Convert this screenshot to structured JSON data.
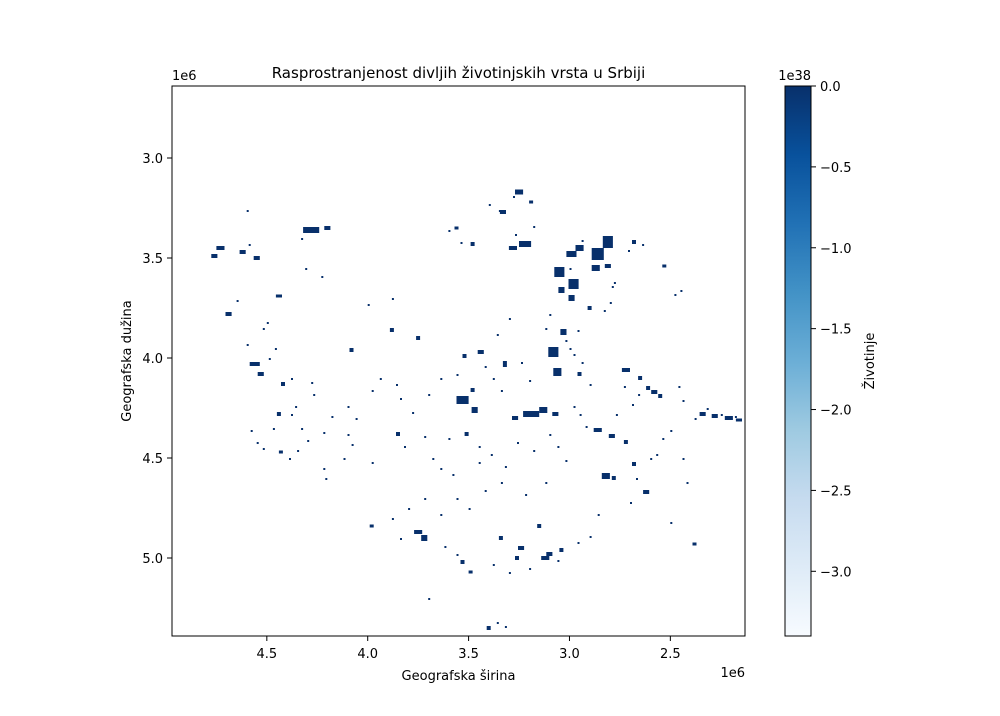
{
  "chart_data": {
    "type": "heatmap",
    "title": "Rasprostranjenost divljih životinjskih vrsta u Srbiji",
    "xlabel": "Geografska širina",
    "ylabel": "Geografska dužina",
    "x_offset_text": "1e6",
    "y_offset_text": "1e6",
    "xlim": [
      4.97,
      2.13
    ],
    "ylim": [
      5.39,
      2.64
    ],
    "x_ticks": [
      4.5,
      4.0,
      3.5,
      3.0,
      2.5
    ],
    "x_tick_labels": [
      "4.5",
      "4.0",
      "3.5",
      "3.0",
      "2.5"
    ],
    "y_ticks": [
      3.0,
      3.5,
      4.0,
      4.5,
      5.0
    ],
    "y_tick_labels": [
      "3.0",
      "3.5",
      "4.0",
      "4.5",
      "5.0"
    ],
    "colorbar": {
      "label": "Životinje",
      "offset_text": "1e38",
      "range": [
        -3.4,
        0.0
      ],
      "ticks": [
        0.0,
        -0.5,
        -1.0,
        -1.5,
        -2.0,
        -2.5,
        -3.0
      ],
      "tick_labels": [
        "0.0",
        "−0.5",
        "−1.0",
        "−1.5",
        "−2.0",
        "−2.5",
        "−3.0"
      ],
      "colormap": "Blues",
      "colors": [
        "#f7fbff",
        "#deebf7",
        "#c6dbef",
        "#9ecae1",
        "#6baed6",
        "#4292c6",
        "#2171b5",
        "#08519c",
        "#08306b"
      ]
    },
    "patch_value": 0.0,
    "patch_color": "#08306b",
    "patches": [
      [
        3.25,
        3.17,
        0.04,
        0.025
      ],
      [
        3.33,
        3.27,
        0.03,
        0.02
      ],
      [
        3.19,
        3.22,
        0.02,
        0.015
      ],
      [
        4.28,
        3.36,
        0.08,
        0.03
      ],
      [
        4.2,
        3.35,
        0.03,
        0.02
      ],
      [
        4.73,
        3.45,
        0.04,
        0.02
      ],
      [
        4.76,
        3.49,
        0.03,
        0.02
      ],
      [
        4.62,
        3.47,
        0.03,
        0.02
      ],
      [
        4.55,
        3.5,
        0.03,
        0.02
      ],
      [
        4.69,
        3.78,
        0.03,
        0.02
      ],
      [
        4.44,
        3.69,
        0.03,
        0.015
      ],
      [
        3.48,
        3.43,
        0.02,
        0.02
      ],
      [
        3.22,
        3.43,
        0.06,
        0.03
      ],
      [
        3.28,
        3.45,
        0.04,
        0.02
      ],
      [
        2.99,
        3.48,
        0.05,
        0.03
      ],
      [
        2.95,
        3.45,
        0.04,
        0.03
      ],
      [
        2.86,
        3.48,
        0.06,
        0.06
      ],
      [
        2.81,
        3.42,
        0.05,
        0.06
      ],
      [
        2.87,
        3.55,
        0.04,
        0.03
      ],
      [
        3.05,
        3.57,
        0.05,
        0.05
      ],
      [
        2.98,
        3.63,
        0.05,
        0.05
      ],
      [
        3.04,
        3.66,
        0.03,
        0.03
      ],
      [
        2.99,
        3.7,
        0.03,
        0.03
      ],
      [
        2.9,
        3.75,
        0.02,
        0.02
      ],
      [
        2.81,
        3.54,
        0.03,
        0.02
      ],
      [
        2.68,
        3.42,
        0.02,
        0.02
      ],
      [
        2.53,
        3.54,
        0.02,
        0.015
      ],
      [
        3.75,
        3.9,
        0.02,
        0.02
      ],
      [
        4.08,
        3.96,
        0.02,
        0.02
      ],
      [
        3.88,
        3.86,
        0.02,
        0.02
      ],
      [
        3.52,
        3.99,
        0.02,
        0.02
      ],
      [
        3.44,
        3.97,
        0.03,
        0.02
      ],
      [
        3.32,
        4.03,
        0.02,
        0.03
      ],
      [
        3.08,
        3.97,
        0.05,
        0.05
      ],
      [
        3.06,
        4.07,
        0.04,
        0.04
      ],
      [
        3.03,
        3.87,
        0.03,
        0.03
      ],
      [
        2.95,
        4.08,
        0.02,
        0.02
      ],
      [
        4.56,
        4.03,
        0.05,
        0.02
      ],
      [
        4.53,
        4.08,
        0.03,
        0.02
      ],
      [
        3.53,
        4.21,
        0.06,
        0.04
      ],
      [
        3.47,
        4.26,
        0.03,
        0.03
      ],
      [
        3.48,
        4.16,
        0.02,
        0.02
      ],
      [
        3.19,
        4.28,
        0.08,
        0.03
      ],
      [
        3.13,
        4.26,
        0.04,
        0.03
      ],
      [
        3.07,
        4.28,
        0.03,
        0.02
      ],
      [
        3.27,
        4.3,
        0.03,
        0.02
      ],
      [
        3.51,
        4.38,
        0.02,
        0.02
      ],
      [
        3.85,
        4.38,
        0.02,
        0.02
      ],
      [
        2.72,
        4.06,
        0.04,
        0.02
      ],
      [
        2.65,
        4.1,
        0.02,
        0.02
      ],
      [
        2.61,
        4.15,
        0.02,
        0.02
      ],
      [
        2.58,
        4.17,
        0.03,
        0.02
      ],
      [
        2.55,
        4.19,
        0.02,
        0.02
      ],
      [
        2.34,
        4.28,
        0.03,
        0.02
      ],
      [
        2.28,
        4.29,
        0.03,
        0.02
      ],
      [
        2.21,
        4.3,
        0.04,
        0.02
      ],
      [
        2.16,
        4.31,
        0.03,
        0.015
      ],
      [
        2.86,
        4.36,
        0.04,
        0.02
      ],
      [
        2.79,
        4.39,
        0.03,
        0.02
      ],
      [
        2.72,
        4.42,
        0.02,
        0.02
      ],
      [
        2.82,
        4.59,
        0.04,
        0.03
      ],
      [
        2.78,
        4.6,
        0.02,
        0.02
      ],
      [
        2.68,
        4.53,
        0.02,
        0.02
      ],
      [
        2.62,
        4.67,
        0.03,
        0.02
      ],
      [
        3.75,
        4.87,
        0.04,
        0.02
      ],
      [
        3.72,
        4.9,
        0.03,
        0.03
      ],
      [
        3.53,
        5.02,
        0.02,
        0.02
      ],
      [
        3.49,
        5.07,
        0.02,
        0.015
      ],
      [
        3.24,
        4.95,
        0.03,
        0.02
      ],
      [
        3.26,
        5.0,
        0.02,
        0.02
      ],
      [
        3.12,
        5.0,
        0.04,
        0.02
      ],
      [
        3.1,
        4.98,
        0.03,
        0.02
      ],
      [
        3.04,
        4.96,
        0.02,
        0.02
      ],
      [
        3.34,
        4.9,
        0.02,
        0.02
      ],
      [
        3.15,
        4.84,
        0.02,
        0.02
      ],
      [
        2.38,
        4.93,
        0.02,
        0.015
      ],
      [
        4.44,
        4.28,
        0.02,
        0.02
      ],
      [
        4.42,
        4.13,
        0.02,
        0.02
      ],
      [
        3.98,
        4.84,
        0.02,
        0.015
      ],
      [
        4.43,
        4.47,
        0.02,
        0.015
      ],
      [
        3.4,
        5.35,
        0.02,
        0.02
      ],
      [
        3.56,
        3.35,
        0.02,
        0.015
      ]
    ],
    "speckles": [
      [
        3.6,
        3.36
      ],
      [
        3.4,
        3.23
      ],
      [
        3.28,
        3.19
      ],
      [
        3.35,
        3.26
      ],
      [
        3.18,
        3.34
      ],
      [
        2.94,
        3.41
      ],
      [
        2.71,
        3.46
      ],
      [
        2.64,
        3.43
      ],
      [
        2.45,
        3.66
      ],
      [
        2.48,
        3.68
      ],
      [
        2.78,
        3.62
      ],
      [
        2.79,
        3.64
      ],
      [
        2.8,
        3.72
      ],
      [
        2.83,
        3.76
      ],
      [
        3.1,
        3.78
      ],
      [
        3.12,
        3.85
      ],
      [
        3.02,
        3.91
      ],
      [
        2.98,
        3.98
      ],
      [
        2.94,
        4.02
      ],
      [
        2.9,
        4.13
      ],
      [
        3.2,
        4.11
      ],
      [
        3.24,
        4.02
      ],
      [
        3.3,
        3.8
      ],
      [
        3.36,
        3.88
      ],
      [
        3.88,
        3.7
      ],
      [
        4.0,
        3.73
      ],
      [
        4.23,
        3.59
      ],
      [
        4.59,
        3.43
      ],
      [
        4.65,
        3.71
      ],
      [
        4.5,
        3.82
      ],
      [
        4.52,
        3.85
      ],
      [
        4.6,
        3.93
      ],
      [
        4.46,
        3.95
      ],
      [
        4.49,
        4.0
      ],
      [
        4.38,
        4.1
      ],
      [
        4.28,
        4.12
      ],
      [
        4.27,
        4.18
      ],
      [
        4.36,
        4.24
      ],
      [
        4.58,
        4.36
      ],
      [
        4.55,
        4.42
      ],
      [
        4.52,
        4.45
      ],
      [
        4.47,
        4.35
      ],
      [
        4.39,
        4.5
      ],
      [
        4.35,
        4.46
      ],
      [
        4.22,
        4.55
      ],
      [
        4.21,
        4.6
      ],
      [
        4.1,
        4.38
      ],
      [
        3.86,
        4.13
      ],
      [
        3.84,
        4.2
      ],
      [
        3.78,
        4.27
      ],
      [
        3.72,
        4.39
      ],
      [
        3.82,
        4.44
      ],
      [
        3.68,
        4.5
      ],
      [
        3.64,
        4.55
      ],
      [
        3.58,
        4.58
      ],
      [
        3.45,
        4.44
      ],
      [
        3.39,
        4.48
      ],
      [
        3.32,
        4.54
      ],
      [
        3.26,
        4.42
      ],
      [
        3.18,
        4.46
      ],
      [
        3.1,
        4.38
      ],
      [
        3.06,
        4.44
      ],
      [
        3.02,
        4.51
      ],
      [
        3.12,
        4.62
      ],
      [
        3.22,
        4.68
      ],
      [
        3.34,
        4.62
      ],
      [
        3.42,
        4.66
      ],
      [
        3.5,
        4.75
      ],
      [
        3.56,
        4.7
      ],
      [
        3.64,
        4.78
      ],
      [
        3.72,
        4.7
      ],
      [
        3.8,
        4.75
      ],
      [
        3.88,
        4.8
      ],
      [
        3.84,
        4.9
      ],
      [
        3.62,
        4.94
      ],
      [
        3.56,
        4.98
      ],
      [
        3.38,
        5.03
      ],
      [
        3.3,
        5.07
      ],
      [
        3.2,
        5.05
      ],
      [
        3.06,
        5.01
      ],
      [
        2.96,
        4.92
      ],
      [
        2.9,
        4.89
      ],
      [
        2.86,
        4.78
      ],
      [
        2.7,
        4.72
      ],
      [
        2.67,
        4.6
      ],
      [
        2.6,
        4.5
      ],
      [
        2.57,
        4.48
      ],
      [
        2.54,
        4.4
      ],
      [
        2.5,
        4.36
      ],
      [
        2.44,
        4.5
      ],
      [
        2.42,
        4.62
      ],
      [
        2.5,
        4.82
      ],
      [
        2.38,
        4.3
      ],
      [
        2.32,
        4.25
      ],
      [
        2.25,
        4.28
      ],
      [
        2.18,
        4.29
      ],
      [
        2.44,
        4.21
      ],
      [
        2.46,
        4.14
      ],
      [
        2.66,
        4.18
      ],
      [
        2.69,
        4.23
      ],
      [
        2.73,
        4.14
      ],
      [
        2.77,
        4.28
      ],
      [
        2.98,
        4.24
      ],
      [
        3.34,
        4.16
      ],
      [
        3.38,
        4.1
      ],
      [
        3.42,
        4.04
      ],
      [
        3.56,
        4.08
      ],
      [
        3.64,
        4.1
      ],
      [
        3.7,
        4.18
      ],
      [
        3.94,
        4.1
      ],
      [
        3.98,
        4.16
      ],
      [
        4.06,
        4.3
      ],
      [
        4.1,
        4.24
      ],
      [
        4.18,
        4.29
      ],
      [
        4.22,
        4.37
      ],
      [
        4.3,
        4.41
      ],
      [
        4.33,
        4.35
      ],
      [
        4.38,
        4.28
      ],
      [
        4.31,
        3.55
      ],
      [
        4.33,
        3.4
      ],
      [
        4.6,
        3.26
      ],
      [
        3.54,
        3.42
      ],
      [
        3.0,
        3.55
      ],
      [
        2.96,
        3.86
      ],
      [
        3.0,
        3.95
      ],
      [
        2.92,
        4.34
      ],
      [
        2.95,
        4.28
      ],
      [
        3.45,
        4.52
      ],
      [
        3.6,
        4.4
      ],
      [
        3.98,
        4.52
      ],
      [
        4.08,
        4.43
      ],
      [
        4.12,
        4.5
      ],
      [
        3.7,
        5.2
      ],
      [
        3.36,
        5.32
      ],
      [
        3.32,
        5.34
      ],
      [
        3.27,
        3.38
      ]
    ]
  }
}
